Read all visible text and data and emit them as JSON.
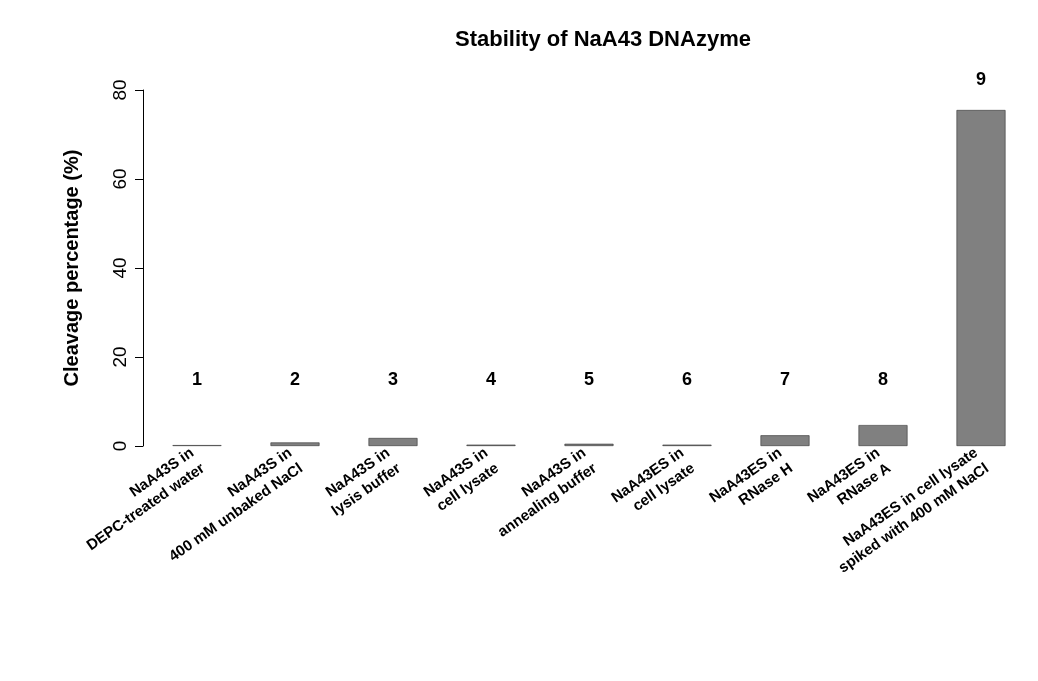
{
  "chart_data": {
    "type": "bar",
    "title": "Stability of NaA43 DNAzyme",
    "ylabel": "Cleavage percentage (%)",
    "categories": [
      "NaA43S in\nDEPC-treated water",
      "NaA43S in\n400 mM unbaked NaCl",
      "NaA43S in\nlysis buffer",
      "NaA43S in\ncell lysate",
      "NaA43S in\nannealing buffer",
      "NaA43ES in\ncell lysate",
      "NaA43ES in\nRNase H",
      "NaA43ES in\nRNase A",
      "NaA43ES in cell lysate\nspiked with 400 mM NaCl"
    ],
    "values": [
      0.2,
      0.8,
      1.8,
      0.3,
      0.5,
      0.3,
      2.4,
      4.7,
      75.5
    ],
    "color": "#808080",
    "ylim": [
      0,
      80
    ],
    "yticks": [
      0,
      20,
      40,
      60,
      80
    ],
    "grid": false,
    "annotations": [
      "1",
      "2",
      "3",
      "4",
      "5",
      "6",
      "7",
      "8",
      "9"
    ]
  }
}
